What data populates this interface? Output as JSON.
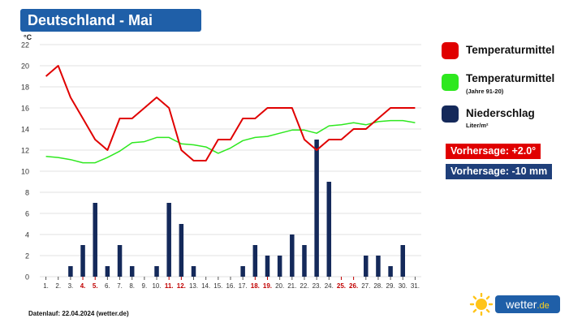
{
  "header": {
    "title": "Deutschland - Mai"
  },
  "legend": {
    "items": [
      {
        "label": "Temperaturmittel",
        "sub": "",
        "color": "#e00000"
      },
      {
        "label": "Temperaturmittel",
        "sub": "(Jahre 91-20)",
        "color": "#2ee81f"
      },
      {
        "label": "Niederschlag",
        "sub": "Liter/m²",
        "color": "#14295a"
      }
    ]
  },
  "badges": {
    "temp_forecast": "Vorhersage: +2.0°",
    "temp_color": "#e00000",
    "precip_forecast": "Vorhersage: -10 mm",
    "precip_color": "#1f3f7a"
  },
  "footer": {
    "text": "Datenlauf: 22.04.2024 (wetter.de)"
  },
  "logo": {
    "name": "wetter",
    "tld": ".de",
    "icon": "sun-icon"
  },
  "chart_data": {
    "type": "line+bar",
    "yunit": "°C",
    "ylim": [
      0,
      22
    ],
    "yticks": [
      0,
      2,
      4,
      6,
      8,
      10,
      12,
      14,
      16,
      18,
      20,
      22
    ],
    "grid": true,
    "categories": [
      "1.",
      "2.",
      "3.",
      "4.",
      "5.",
      "6.",
      "7.",
      "8.",
      "9.",
      "10.",
      "11.",
      "12.",
      "13.",
      "14.",
      "15.",
      "16.",
      "17.",
      "18.",
      "19.",
      "20.",
      "21.",
      "22.",
      "23.",
      "24.",
      "25.",
      "26.",
      "27.",
      "28.",
      "29.",
      "30.",
      "31."
    ],
    "highlight_days": [
      4,
      5,
      11,
      12,
      18,
      19,
      25,
      26
    ],
    "highlight_color": "#c00000",
    "series": [
      {
        "name": "Temperaturmittel",
        "type": "line",
        "color": "#e00000",
        "values": [
          19,
          20,
          17,
          15,
          13,
          12,
          15,
          15,
          16,
          17,
          16,
          12,
          11,
          11,
          13,
          13,
          15,
          15,
          16,
          16,
          16,
          13,
          12,
          13,
          13,
          14,
          14,
          15,
          16,
          16,
          16
        ]
      },
      {
        "name": "Temperaturmittel (Jahre 91-20)",
        "type": "line",
        "color": "#2ee81f",
        "values": [
          11.4,
          11.3,
          11.1,
          10.8,
          10.8,
          11.3,
          11.9,
          12.7,
          12.8,
          13.2,
          13.2,
          12.6,
          12.5,
          12.3,
          11.7,
          12.2,
          12.9,
          13.2,
          13.3,
          13.6,
          13.9,
          13.9,
          13.6,
          14.3,
          14.4,
          14.6,
          14.4,
          14.7,
          14.8,
          14.8,
          14.6
        ]
      },
      {
        "name": "Niederschlag",
        "type": "bar",
        "color": "#14295a",
        "values": [
          0,
          0,
          1,
          3,
          7,
          1,
          3,
          1,
          0,
          1,
          7,
          5,
          1,
          0,
          0,
          0,
          1,
          3,
          2,
          2,
          4,
          3,
          13,
          9,
          0,
          0,
          2,
          2,
          1,
          3,
          0
        ]
      }
    ]
  }
}
